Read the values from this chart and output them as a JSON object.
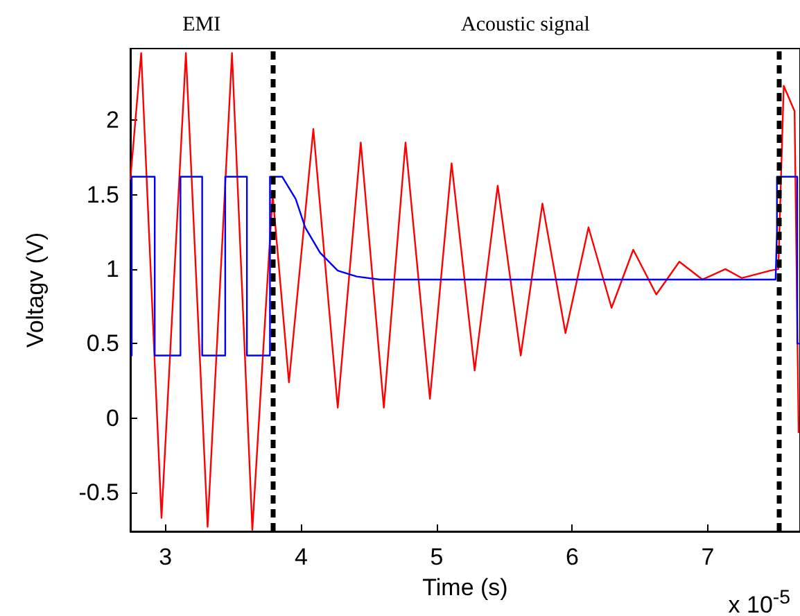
{
  "chart_data": {
    "type": "line",
    "xlabel": "Time (s)",
    "ylabel": "Voltagv (V)",
    "annotations": [
      "EMI",
      "Acoustic signal",
      "x 10$^{-5}$"
    ],
    "xlim": [
      2.74,
      7.68
    ],
    "xticks": [
      3,
      4,
      5,
      6,
      7
    ],
    "ylim": [
      -0.76,
      2.48
    ],
    "yticks": [
      -0.5,
      0,
      0.5,
      1,
      1.5,
      2
    ],
    "grid": false,
    "legend": false,
    "marker": "none",
    "line_style": "solid",
    "ref_lines": [
      {
        "axis": "x",
        "value": 3.79,
        "label": null,
        "color": "#000000",
        "line_style": "dashed"
      },
      {
        "axis": "x",
        "value": 7.52,
        "label": null,
        "color": "#000000",
        "line_style": "dashed"
      }
    ],
    "series": [
      {
        "color": "#ff0000",
        "x": [
          2.74,
          2.82,
          2.97,
          3.15,
          3.31,
          3.49,
          3.64,
          3.79,
          3.91,
          4.09,
          4.27,
          4.44,
          4.61,
          4.77,
          4.95,
          5.11,
          5.28,
          5.45,
          5.62,
          5.78,
          5.95,
          6.12,
          6.29,
          6.45,
          6.62,
          6.79,
          6.96,
          7.13,
          7.25,
          7.46,
          7.52,
          7.56,
          7.64,
          7.67
        ],
        "values": [
          1.6,
          2.45,
          -0.67,
          2.45,
          -0.73,
          2.45,
          -0.75,
          1.5,
          0.24,
          1.94,
          0.07,
          1.85,
          0.07,
          1.85,
          0.13,
          1.71,
          0.32,
          1.56,
          0.42,
          1.44,
          0.57,
          1.28,
          0.74,
          1.13,
          0.83,
          1.05,
          0.93,
          1.0,
          0.94,
          0.99,
          1.0,
          2.23,
          2.06,
          -0.1
        ]
      },
      {
        "color": "#0000ff",
        "x": [
          2.74,
          2.75,
          2.75,
          2.92,
          2.92,
          3.11,
          3.11,
          3.27,
          3.27,
          3.44,
          3.44,
          3.6,
          3.6,
          3.77,
          3.77,
          3.86,
          3.96,
          4.03,
          4.14,
          4.27,
          4.41,
          4.58,
          7.5,
          7.51,
          7.51,
          7.66,
          7.66,
          7.68
        ],
        "values": [
          0.42,
          0.42,
          1.62,
          1.62,
          0.42,
          0.42,
          1.62,
          1.62,
          0.42,
          0.42,
          1.62,
          1.62,
          0.42,
          0.42,
          1.62,
          1.62,
          1.47,
          1.28,
          1.11,
          0.99,
          0.95,
          0.93,
          0.93,
          1.25,
          1.62,
          1.62,
          0.5,
          0.5
        ]
      }
    ]
  }
}
